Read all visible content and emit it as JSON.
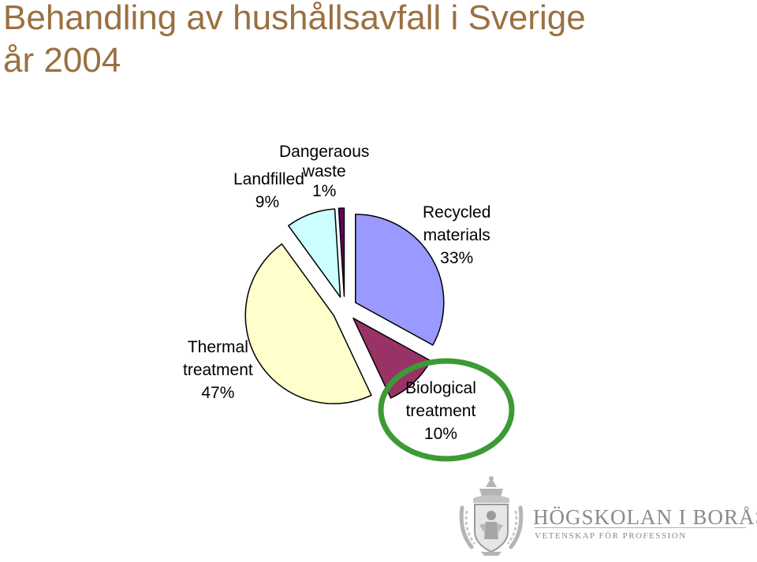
{
  "slide": {
    "title_line1": "Behandling av hushållsavfall i Sverige",
    "title_line2": "år 2004"
  },
  "chart_data": {
    "type": "pie",
    "title": "",
    "slices": [
      {
        "label_lines": [
          "Recycled",
          "materials"
        ],
        "value": 33,
        "value_label": "33%",
        "color": "#9999ff"
      },
      {
        "label_lines": [
          "Biological",
          "treatment"
        ],
        "value": 10,
        "value_label": "10%",
        "color": "#993366"
      },
      {
        "label_lines": [
          "Thermal",
          "treatment"
        ],
        "value": 47,
        "value_label": "47%",
        "color": "#ffffcc"
      },
      {
        "label_lines": [
          "Landfilled"
        ],
        "value": 9,
        "value_label": "9%",
        "color": "#ccffff"
      },
      {
        "label_lines": [
          "Dangeraous",
          "waste"
        ],
        "value": 1,
        "value_label": "1%",
        "color": "#660066"
      }
    ],
    "exploded": true,
    "highlight": {
      "slice": "Biological treatment",
      "shape": "ellipse",
      "color": "#3d9a35"
    }
  },
  "logo": {
    "name": "HÖGSKOLAN I BORÅS",
    "tagline": "VETENSKAP FÖR PROFESSION"
  }
}
